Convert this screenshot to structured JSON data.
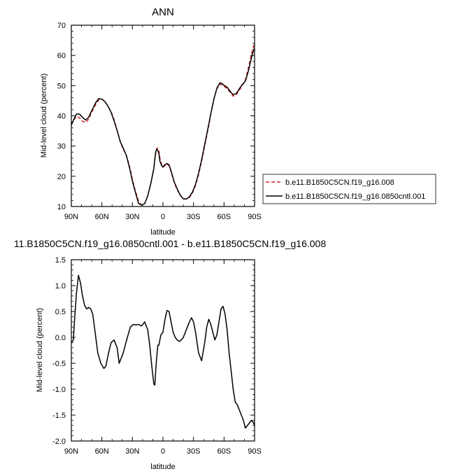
{
  "chart_data": [
    {
      "type": "line",
      "title": "ANN",
      "xlabel": "latitude",
      "ylabel": "Mid-level cloud (percent)",
      "xlim": [
        90,
        -90
      ],
      "ylim": [
        10,
        70
      ],
      "x_ticks": [
        90,
        60,
        30,
        0,
        -30,
        -60,
        -90
      ],
      "x_tick_labels": [
        "90N",
        "60N",
        "30N",
        "0",
        "30S",
        "60S",
        "90S"
      ],
      "y_ticks": [
        10,
        20,
        30,
        40,
        50,
        60,
        70
      ],
      "y_tick_labels": [
        "10",
        "20",
        "30",
        "40",
        "50",
        "60",
        "70"
      ],
      "legend_position": "right",
      "series": [
        {
          "name": "b.e11.B1850C5CN.f19_g16.008",
          "color": "#d62020",
          "dash": "dashed",
          "x": [
            90,
            88,
            85,
            82,
            79,
            76,
            73,
            70,
            66,
            63,
            60,
            57,
            54,
            51,
            48,
            45,
            42,
            39,
            36,
            33,
            30,
            27,
            24,
            21,
            18,
            15,
            12,
            9,
            8,
            7,
            6,
            5,
            4,
            3,
            1,
            0,
            -2,
            -4,
            -6,
            -8,
            -11,
            -14,
            -17,
            -20,
            -23,
            -26,
            -29,
            -32,
            -35,
            -38,
            -41,
            -44,
            -47,
            -50,
            -53,
            -56,
            -58,
            -60,
            -63,
            -66,
            -69,
            -72,
            -75,
            -78,
            -81,
            -84,
            -86,
            -88,
            -90
          ],
          "y": [
            37.0,
            38.5,
            39.8,
            39.4,
            38.2,
            37.8,
            38.9,
            41.2,
            43.8,
            45.3,
            45.5,
            44.8,
            43.2,
            41.4,
            38.8,
            35.2,
            31.5,
            29.0,
            27.0,
            23.5,
            19.0,
            15.0,
            11.8,
            10.4,
            10.9,
            13.5,
            17.5,
            22.5,
            25.5,
            27.8,
            29.3,
            29.3,
            28.5,
            26.0,
            23.5,
            23.0,
            23.5,
            24.0,
            23.5,
            21.5,
            18.0,
            15.5,
            13.8,
            12.6,
            12.5,
            13.0,
            14.5,
            17.0,
            20.5,
            25.0,
            30.0,
            35.0,
            40.5,
            45.5,
            49.0,
            50.5,
            50.3,
            49.8,
            49.0,
            47.8,
            46.5,
            47.0,
            48.5,
            50.0,
            52.0,
            56.0,
            59.0,
            62.0,
            64.0
          ]
        },
        {
          "name": "b.e11.B1850C5CN.f19_g16.0850cntl.001",
          "color": "#000000",
          "dash": "solid",
          "x": [
            90,
            88,
            85,
            82,
            79,
            76,
            73,
            70,
            66,
            63,
            60,
            57,
            54,
            51,
            48,
            45,
            42,
            39,
            36,
            33,
            30,
            27,
            24,
            21,
            18,
            15,
            12,
            9,
            8,
            7,
            6,
            5,
            4,
            3,
            1,
            0,
            -2,
            -4,
            -6,
            -8,
            -11,
            -14,
            -17,
            -20,
            -23,
            -26,
            -29,
            -32,
            -35,
            -38,
            -41,
            -44,
            -47,
            -50,
            -53,
            -56,
            -58,
            -60,
            -63,
            -66,
            -69,
            -72,
            -75,
            -78,
            -81,
            -84,
            -86,
            -88,
            -90
          ],
          "y": [
            36.9,
            38.5,
            40.6,
            40.6,
            39.5,
            38.6,
            39.5,
            41.7,
            44.4,
            45.7,
            45.5,
            44.7,
            43.2,
            41.2,
            38.3,
            35.1,
            31.5,
            29.3,
            26.9,
            23.0,
            18.4,
            14.6,
            11.0,
            10.5,
            10.9,
            13.5,
            17.5,
            22.5,
            25.8,
            28.3,
            29.0,
            28.4,
            27.6,
            25.0,
            23.4,
            23.1,
            23.9,
            24.2,
            23.8,
            21.8,
            18.2,
            15.8,
            13.7,
            12.5,
            12.5,
            13.2,
            14.8,
            17.4,
            21.0,
            25.5,
            30.6,
            35.5,
            40.7,
            45.5,
            49.2,
            50.9,
            50.7,
            50.1,
            49.5,
            48.1,
            47.0,
            47.4,
            49.0,
            50.4,
            51.5,
            55.0,
            57.9,
            60.6,
            62.3
          ]
        }
      ]
    },
    {
      "type": "line",
      "title": "11.B1850C5CN.f19_g16.0850cntl.001 - b.e11.B1850C5CN.f19_g16.008",
      "xlabel": "latitude",
      "ylabel": "Mid-level cloud (percent)",
      "xlim": [
        90,
        -90
      ],
      "ylim": [
        -2.0,
        1.5
      ],
      "x_ticks": [
        90,
        60,
        30,
        0,
        -30,
        -60,
        -90
      ],
      "x_tick_labels": [
        "90N",
        "60N",
        "30N",
        "0",
        "30S",
        "60S",
        "90S"
      ],
      "y_ticks": [
        -2.0,
        -1.5,
        -1.0,
        -0.5,
        0.0,
        0.5,
        1.0,
        1.5
      ],
      "y_tick_labels": [
        "-2.0",
        "-1.5",
        "-1.0",
        "-0.5",
        "0.0",
        "0.5",
        "1.0",
        "1.5"
      ],
      "series": [
        {
          "color": "#000000",
          "dash": "solid",
          "x": [
            90,
            88,
            87,
            85,
            83,
            81,
            79,
            77,
            75,
            73,
            71,
            69,
            67,
            64,
            61,
            58,
            56,
            54,
            51,
            48,
            45,
            43,
            41,
            39,
            37,
            35,
            32,
            29,
            27,
            24,
            21,
            18,
            15,
            13,
            11,
            9,
            8,
            7,
            6,
            5,
            4,
            3,
            2,
            0,
            -2,
            -4,
            -6,
            -8,
            -10,
            -12,
            -14,
            -16,
            -18,
            -20,
            -22,
            -24,
            -26,
            -28,
            -30,
            -32,
            -35,
            -38,
            -41,
            -43,
            -45,
            -47,
            -49,
            -51,
            -53,
            -55,
            -57,
            -59,
            -61,
            -63,
            -65,
            -67,
            -69,
            -71,
            -73,
            -75,
            -77,
            -79,
            -81,
            -83,
            -85,
            -87,
            -89,
            -90
          ],
          "y": [
            -0.1,
            -0.05,
            0.3,
            0.85,
            1.2,
            1.05,
            0.8,
            0.62,
            0.55,
            0.58,
            0.55,
            0.45,
            0.15,
            -0.3,
            -0.5,
            -0.6,
            -0.55,
            -0.35,
            -0.1,
            -0.05,
            -0.2,
            -0.5,
            -0.4,
            -0.3,
            -0.15,
            0.0,
            0.2,
            0.25,
            0.24,
            0.25,
            0.22,
            0.3,
            0.15,
            -0.15,
            -0.55,
            -0.9,
            -0.92,
            -0.6,
            -0.35,
            -0.15,
            -0.15,
            -0.05,
            0.05,
            0.1,
            0.35,
            0.52,
            0.5,
            0.3,
            0.1,
            0.0,
            -0.05,
            -0.08,
            -0.05,
            0.0,
            0.1,
            0.2,
            0.3,
            0.38,
            0.3,
            0.1,
            -0.3,
            -0.45,
            -0.1,
            0.2,
            0.35,
            0.25,
            0.1,
            -0.05,
            0.05,
            0.3,
            0.55,
            0.6,
            0.45,
            0.15,
            -0.3,
            -0.65,
            -1.0,
            -1.25,
            -1.3,
            -1.4,
            -1.5,
            -1.6,
            -1.75,
            -1.7,
            -1.65,
            -1.6,
            -1.65,
            -1.7
          ]
        }
      ]
    }
  ]
}
